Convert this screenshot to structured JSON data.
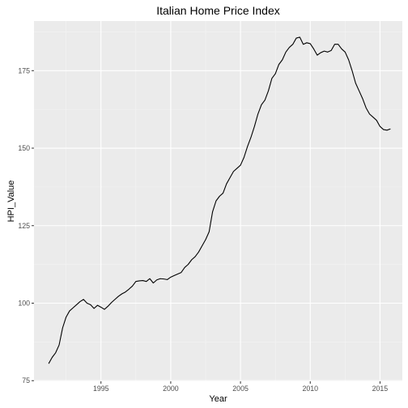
{
  "chart_data": {
    "type": "line",
    "title": "Italian Home Price Index",
    "xlabel": "Year",
    "ylabel": "HPI_Value",
    "xlim": [
      1990.2,
      2016.6
    ],
    "ylim": [
      74.8,
      191.0
    ],
    "x_ticks": [
      1995,
      2000,
      2005,
      2010,
      2015
    ],
    "x_tick_labels": [
      "1995",
      "2000",
      "2005",
      "2010",
      "2015"
    ],
    "y_ticks": [
      75,
      100,
      125,
      150,
      175
    ],
    "y_tick_labels": [
      "75",
      "100",
      "125",
      "150",
      "175"
    ],
    "grid": true,
    "legend": "none",
    "colors": {
      "panel": "#ebebeb",
      "grid_major": "#ffffff",
      "grid_minor": "#f5f5f5",
      "line": "#000000",
      "tick_text": "#4d4d4d"
    },
    "series": [
      {
        "x": [
          1991.25,
          1991.5,
          1991.75,
          1992.0,
          1992.25,
          1992.5,
          1992.75,
          1993.0,
          1993.25,
          1993.5,
          1993.75,
          1994.0,
          1994.25,
          1994.5,
          1994.75,
          1995.0,
          1995.25,
          1995.5,
          1995.75,
          1996.0,
          1996.25,
          1996.5,
          1996.75,
          1997.0,
          1997.25,
          1997.5,
          1997.75,
          1998.0,
          1998.25,
          1998.5,
          1998.75,
          1999.0,
          1999.25,
          1999.5,
          1999.75,
          2000.0,
          2000.25,
          2000.5,
          2000.75,
          2001.0,
          2001.25,
          2001.5,
          2001.75,
          2002.0,
          2002.25,
          2002.5,
          2002.75,
          2003.0,
          2003.25,
          2003.5,
          2003.75,
          2004.0,
          2004.25,
          2004.5,
          2004.75,
          2005.0,
          2005.25,
          2005.5,
          2005.75,
          2006.0,
          2006.25,
          2006.5,
          2006.75,
          2007.0,
          2007.25,
          2007.5,
          2007.75,
          2008.0,
          2008.25,
          2008.5,
          2008.75,
          2009.0,
          2009.25,
          2009.5,
          2009.75,
          2010.0,
          2010.25,
          2010.5,
          2010.75,
          2011.0,
          2011.25,
          2011.5,
          2011.75,
          2012.0,
          2012.25,
          2012.5,
          2012.75,
          2013.0,
          2013.25,
          2013.5,
          2013.75,
          2014.0,
          2014.25,
          2014.5,
          2014.75,
          2015.0,
          2015.25,
          2015.5,
          2015.75
        ],
        "values": [
          80.5,
          82.5,
          84.0,
          86.5,
          92.0,
          95.5,
          97.5,
          98.5,
          99.5,
          100.5,
          101.2,
          100.0,
          99.5,
          98.3,
          99.3,
          98.7,
          98.0,
          99.0,
          100.2,
          101.2,
          102.2,
          103.0,
          103.6,
          104.5,
          105.5,
          107.0,
          107.2,
          107.3,
          107.0,
          107.9,
          106.5,
          107.5,
          107.9,
          107.8,
          107.6,
          108.4,
          108.9,
          109.4,
          109.9,
          111.5,
          112.5,
          114.0,
          115.0,
          116.5,
          118.5,
          120.5,
          123.0,
          129.5,
          133.0,
          134.5,
          135.5,
          138.5,
          140.5,
          142.5,
          143.5,
          144.5,
          147.0,
          150.5,
          153.5,
          157.0,
          161.0,
          164.0,
          165.5,
          168.5,
          172.5,
          174.0,
          177.0,
          178.5,
          181.0,
          182.5,
          183.5,
          185.5,
          185.8,
          183.5,
          184.0,
          183.7,
          182.0,
          180.0,
          180.8,
          181.3,
          181.0,
          181.5,
          183.5,
          183.5,
          182.0,
          181.0,
          178.5,
          175.0,
          171.0,
          168.5,
          166.0,
          163.0,
          161.0,
          160.0,
          159.0,
          157.0,
          156.0,
          155.8,
          156.2
        ]
      }
    ]
  }
}
